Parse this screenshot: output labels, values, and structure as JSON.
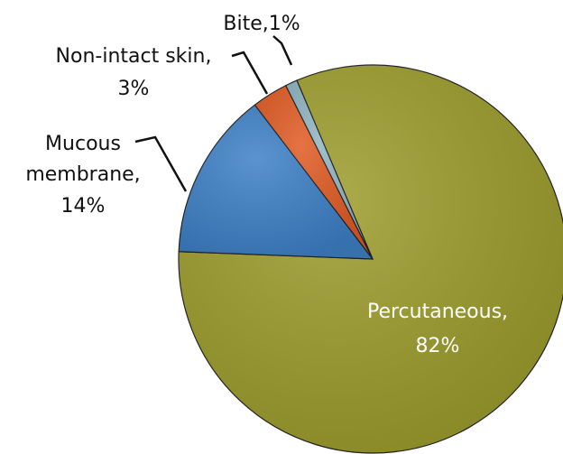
{
  "chart_data": {
    "type": "pie",
    "labels": [
      [
        "Percutaneous,",
        "82%"
      ],
      [
        "Mucous",
        "membrane,",
        "14%"
      ],
      [
        "Non-intact skin,",
        "3%"
      ],
      [
        "Bite,1%"
      ]
    ],
    "values": [
      82,
      14,
      3,
      1
    ],
    "colors": [
      "#9c9c2c",
      "#3d80c6",
      "#e05a22",
      "#8fb5c2"
    ]
  }
}
